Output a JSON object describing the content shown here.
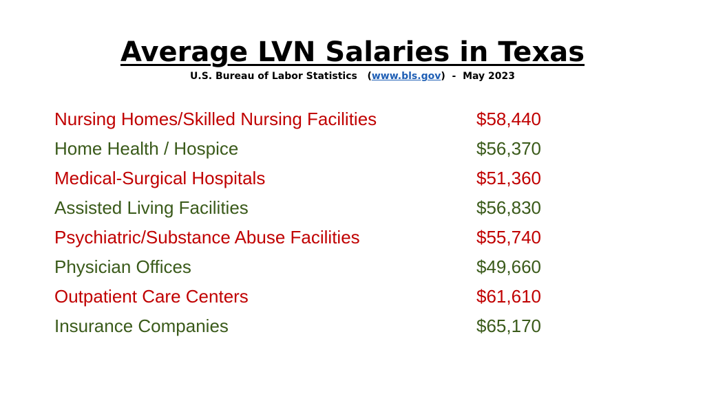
{
  "title": "Average LVN Salaries in Texas",
  "subtitle": {
    "source": "U.S. Bureau of Labor Statistics",
    "open_paren": "(",
    "link": "www.bls.gov",
    "close_paren": ")",
    "dash": "-",
    "date": "May 2023"
  },
  "colors": {
    "red": "#c00000",
    "green": "#3a5a1a"
  },
  "rows": [
    {
      "label": "Nursing Homes/Skilled Nursing Facilities",
      "value": "$58,440",
      "color": "red"
    },
    {
      "label": "Home Health / Hospice",
      "value": "$56,370",
      "color": "green"
    },
    {
      "label": "Medical-Surgical Hospitals",
      "value": "$51,360",
      "color": "red"
    },
    {
      "label": "Assisted Living Facilities",
      "value": "$56,830",
      "color": "green"
    },
    {
      "label": "Psychiatric/Substance Abuse Facilities",
      "value": "$55,740",
      "color": "red"
    },
    {
      "label": "Physician Offices",
      "value": "$49,660",
      "color": "green"
    },
    {
      "label": "Outpatient Care Centers",
      "value": "$61,610",
      "color": "red"
    },
    {
      "label": "Insurance Companies",
      "value": "$65,170",
      "color": "green"
    }
  ]
}
